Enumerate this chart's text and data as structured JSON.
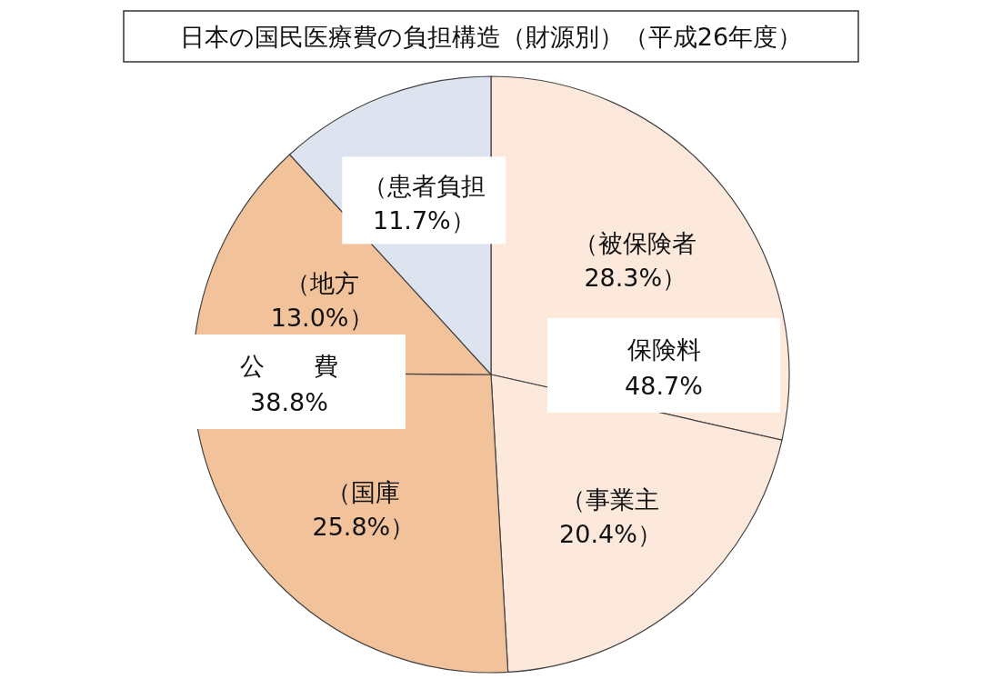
{
  "chart_data": {
    "type": "pie",
    "title": "日本の国民医療費の負担構造（財源別）（平成26年度）",
    "categories": [
      "（被保険者",
      "（事業主",
      "（国庫",
      "（地方",
      "（患者負担"
    ],
    "values": [
      28.3,
      20.4,
      25.8,
      13.0,
      11.7
    ],
    "value_labels": [
      "28.3%）",
      "20.4%）",
      "25.8%）",
      "13.0%）",
      "11.7%）"
    ],
    "colors": [
      "#fce9db",
      "#fce9db",
      "#f2c39a",
      "#f2c39a",
      "#dde3ef"
    ],
    "annotations": [
      "保険料 48.7%",
      "公　　費 38.8%"
    ]
  }
}
